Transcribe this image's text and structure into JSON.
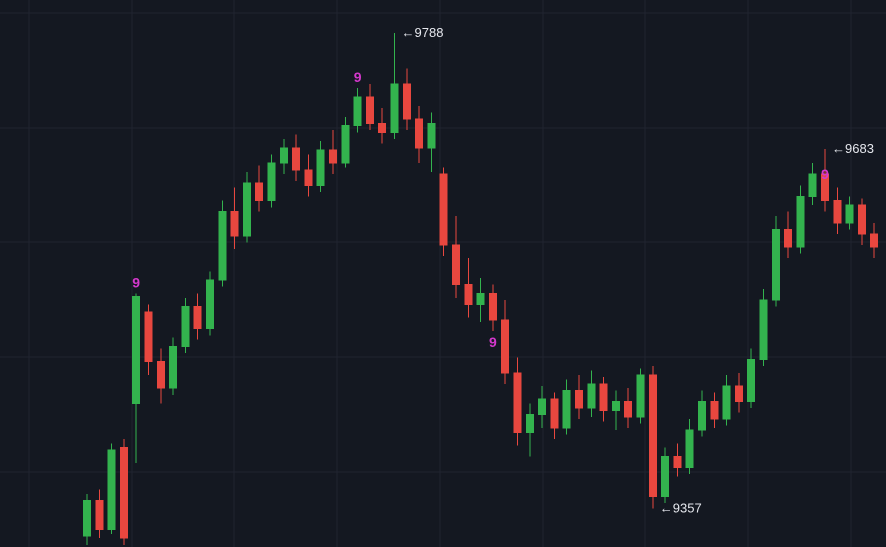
{
  "chart_data": {
    "type": "candlestick",
    "title": "",
    "x_axis_visible": false,
    "y_axis_visible": false,
    "grid": true,
    "price_range": [
      9322,
      9818
    ],
    "background": "#141821",
    "grid_color": "#20242f",
    "up_color": "#33b34e",
    "down_color": "#e8473f",
    "annotation_color": "#e6e8ee",
    "td9_color": "#d438cc",
    "candles": [
      [
        9332,
        9370,
        9324,
        9364
      ],
      [
        9364,
        9374,
        9330,
        9338
      ],
      [
        9338,
        9416,
        9334,
        9410
      ],
      [
        9412,
        9420,
        9324,
        9330
      ],
      [
        9452,
        9552,
        9398,
        9549
      ],
      [
        9535,
        9542,
        9478,
        9490
      ],
      [
        9490,
        9502,
        9452,
        9466
      ],
      [
        9466,
        9512,
        9460,
        9504
      ],
      [
        9504,
        9548,
        9498,
        9540
      ],
      [
        9540,
        9552,
        9510,
        9520
      ],
      [
        9520,
        9572,
        9514,
        9564
      ],
      [
        9564,
        9636,
        9558,
        9626
      ],
      [
        9626,
        9648,
        9592,
        9604
      ],
      [
        9604,
        9662,
        9598,
        9652
      ],
      [
        9652,
        9668,
        9626,
        9636
      ],
      [
        9636,
        9678,
        9630,
        9670
      ],
      [
        9670,
        9692,
        9660,
        9684
      ],
      [
        9684,
        9696,
        9654,
        9664
      ],
      [
        9664,
        9678,
        9640,
        9650
      ],
      [
        9650,
        9690,
        9644,
        9682
      ],
      [
        9682,
        9700,
        9660,
        9670
      ],
      [
        9670,
        9712,
        9666,
        9704
      ],
      [
        9704,
        9738,
        9698,
        9730
      ],
      [
        9730,
        9742,
        9700,
        9706
      ],
      [
        9706,
        9720,
        9688,
        9698
      ],
      [
        9698,
        9788,
        9692,
        9742
      ],
      [
        9742,
        9756,
        9700,
        9710
      ],
      [
        9710,
        9722,
        9670,
        9684
      ],
      [
        9684,
        9716,
        9662,
        9706
      ],
      [
        9660,
        9666,
        9586,
        9596
      ],
      [
        9596,
        9622,
        9548,
        9560
      ],
      [
        9560,
        9584,
        9530,
        9542
      ],
      [
        9542,
        9566,
        9526,
        9552
      ],
      [
        9552,
        9560,
        9518,
        9528
      ],
      [
        9528,
        9546,
        9470,
        9480
      ],
      [
        9480,
        9494,
        9414,
        9426
      ],
      [
        9426,
        9452,
        9404,
        9442
      ],
      [
        9442,
        9468,
        9430,
        9456
      ],
      [
        9456,
        9462,
        9420,
        9430
      ],
      [
        9430,
        9474,
        9424,
        9464
      ],
      [
        9464,
        9478,
        9438,
        9448
      ],
      [
        9448,
        9482,
        9440,
        9470
      ],
      [
        9470,
        9476,
        9436,
        9446
      ],
      [
        9446,
        9464,
        9428,
        9454
      ],
      [
        9454,
        9466,
        9430,
        9440
      ],
      [
        9440,
        9484,
        9434,
        9478
      ],
      [
        9478,
        9486,
        9357,
        9368
      ],
      [
        9368,
        9412,
        9362,
        9404
      ],
      [
        9404,
        9416,
        9386,
        9394
      ],
      [
        9394,
        9438,
        9388,
        9428
      ],
      [
        9428,
        9464,
        9422,
        9454
      ],
      [
        9454,
        9462,
        9430,
        9438
      ],
      [
        9438,
        9478,
        9432,
        9468
      ],
      [
        9468,
        9480,
        9444,
        9454
      ],
      [
        9454,
        9502,
        9448,
        9492
      ],
      [
        9492,
        9556,
        9486,
        9546
      ],
      [
        9546,
        9622,
        9540,
        9610
      ],
      [
        9610,
        9626,
        9584,
        9594
      ],
      [
        9594,
        9650,
        9588,
        9640
      ],
      [
        9640,
        9670,
        9632,
        9660
      ],
      [
        9660,
        9683,
        9626,
        9636
      ],
      [
        9636,
        9648,
        9606,
        9616
      ],
      [
        9616,
        9640,
        9610,
        9632
      ],
      [
        9632,
        9638,
        9596,
        9606
      ],
      [
        9606,
        9616,
        9584,
        9594
      ]
    ],
    "annotations": [
      {
        "kind": "price",
        "candle": 25,
        "price": 9788,
        "label": "←9788"
      },
      {
        "kind": "price",
        "candle": 60,
        "price": 9683,
        "label": "←9683"
      },
      {
        "kind": "price",
        "candle": 46,
        "price": 9357,
        "label": "←9357"
      },
      {
        "kind": "td9",
        "candle": 4,
        "price": 9562,
        "label": "9"
      },
      {
        "kind": "td9",
        "candle": 22,
        "price": 9748,
        "label": "9"
      },
      {
        "kind": "td9",
        "candle": 33,
        "price": 9508,
        "label": "9"
      },
      {
        "kind": "td9",
        "candle": 60,
        "price": 9660,
        "label": "9"
      }
    ]
  }
}
